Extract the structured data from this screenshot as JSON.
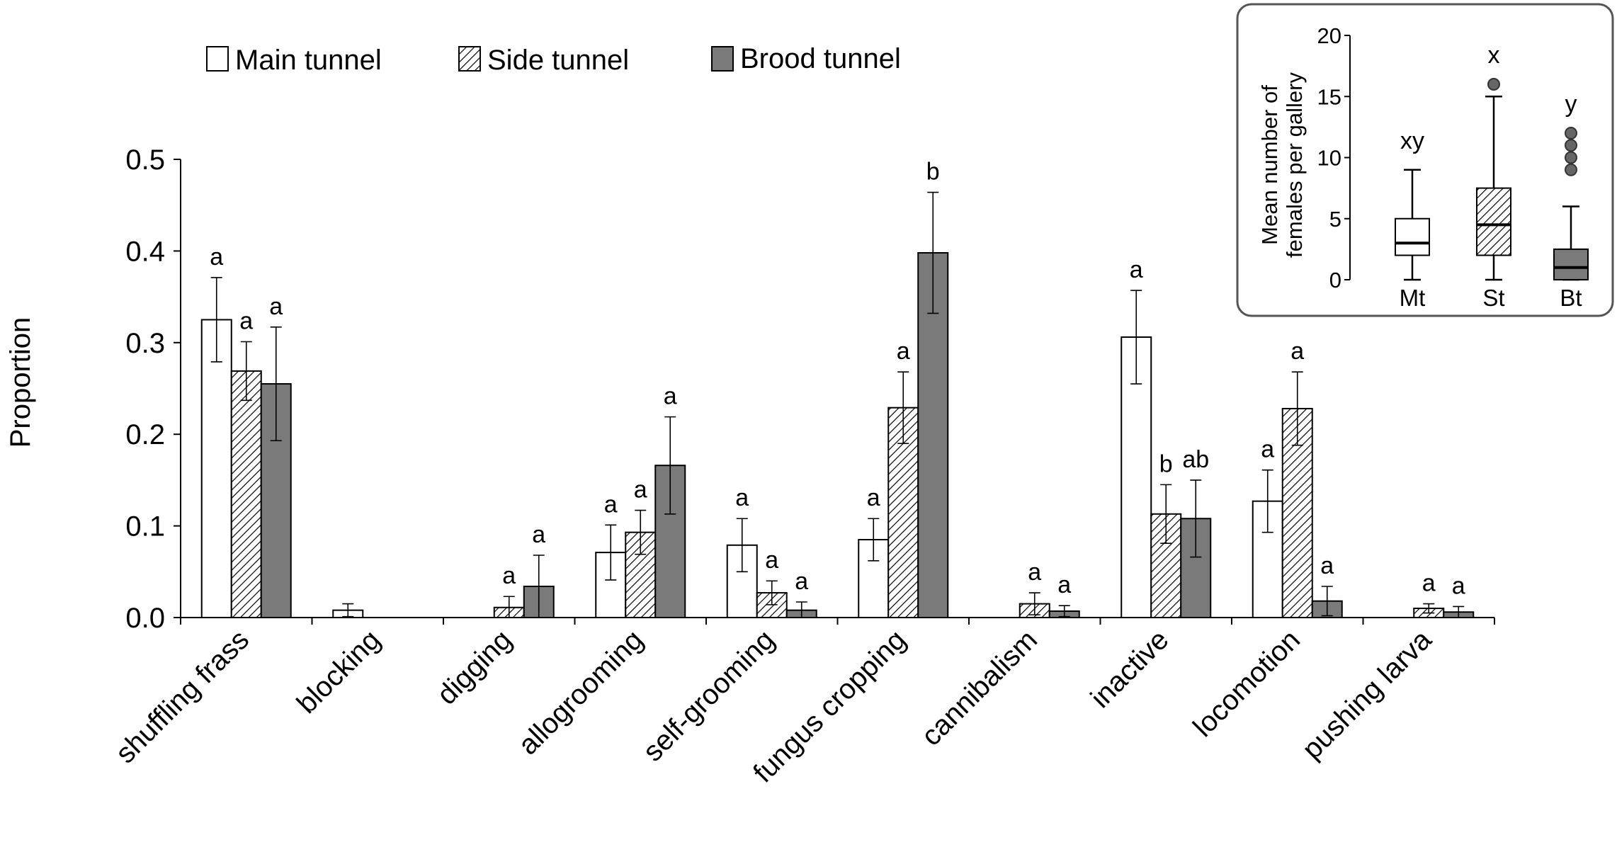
{
  "chart_data": [
    {
      "type": "bar",
      "title": "",
      "xlabel": "",
      "ylabel": "Proportion",
      "ylim": [
        0,
        0.5
      ],
      "yticks": [
        "0.0",
        "0.1",
        "0.2",
        "0.3",
        "0.4",
        "0.5"
      ],
      "yticks_values": [
        0,
        0.1,
        0.2,
        0.3,
        0.4,
        0.5
      ],
      "grid": false,
      "legend_position": "top-left",
      "categories": [
        "shuffling frass",
        "blocking",
        "digging",
        "allogrooming",
        "self-grooming",
        "fungus cropping",
        "cannibalism",
        "inactive",
        "locomotion",
        "pushing larva"
      ],
      "series": [
        {
          "name": "Main tunnel",
          "pattern": "open",
          "values": [
            0.325,
            0.008,
            0,
            0.071,
            0.079,
            0.085,
            0,
            0.306,
            0.127,
            0
          ],
          "errors": [
            0.046,
            0.007,
            0,
            0.03,
            0.029,
            0.023,
            0,
            0.051,
            0.034,
            0
          ],
          "letters": [
            "a",
            "",
            "",
            "a",
            "a",
            "a",
            "",
            "a",
            "a",
            ""
          ]
        },
        {
          "name": "Side tunnel",
          "pattern": "hatched",
          "values": [
            0.269,
            0,
            0.011,
            0.093,
            0.027,
            0.229,
            0.015,
            0.113,
            0.228,
            0.01
          ],
          "errors": [
            0.032,
            0,
            0.012,
            0.024,
            0.013,
            0.039,
            0.012,
            0.032,
            0.04,
            0.005
          ],
          "letters": [
            "a",
            "",
            "a",
            "a",
            "a",
            "a",
            "a",
            "b",
            "a",
            "a"
          ]
        },
        {
          "name": "Brood tunnel",
          "pattern": "dark",
          "values": [
            0.255,
            0,
            0.034,
            0.166,
            0.008,
            0.398,
            0.007,
            0.108,
            0.018,
            0.006
          ],
          "errors": [
            0.062,
            0,
            0.034,
            0.053,
            0.009,
            0.066,
            0.006,
            0.042,
            0.016,
            0.006
          ],
          "letters": [
            "a",
            "",
            "a",
            "a",
            "a",
            "b",
            "a",
            "ab",
            "a",
            "a"
          ]
        }
      ]
    },
    {
      "type": "box",
      "title": "",
      "ylabel": "Mean number of females per gallery",
      "ylim": [
        0,
        20
      ],
      "yticks": [
        "0",
        "5",
        "10",
        "15",
        "20"
      ],
      "yticks_values": [
        0,
        5,
        10,
        15,
        20
      ],
      "legend_position": "top-right",
      "categories": [
        "Mt",
        "St",
        "Bt"
      ],
      "boxes": [
        {
          "name": "Mt",
          "pattern": "open",
          "min": 0,
          "q1": 2,
          "median": 3,
          "q3": 5,
          "max": 9,
          "outliers": [],
          "letter": "xy"
        },
        {
          "name": "St",
          "pattern": "hatched",
          "min": 0,
          "q1": 2,
          "median": 4.5,
          "q3": 7.5,
          "max": 15,
          "outliers": [
            16
          ],
          "letter": "x"
        },
        {
          "name": "Bt",
          "pattern": "dark",
          "min": 0,
          "q1": 0,
          "median": 1,
          "q3": 2.5,
          "max": 6,
          "outliers": [
            9,
            10,
            11,
            12
          ],
          "letter": "y"
        }
      ]
    }
  ],
  "colors": {
    "open_fill": "#ffffff",
    "dark_fill": "#7a7a7a",
    "stroke": "#000000",
    "hatch": "#000000",
    "inset_border": "#555555",
    "outlier_fill": "#666666"
  }
}
